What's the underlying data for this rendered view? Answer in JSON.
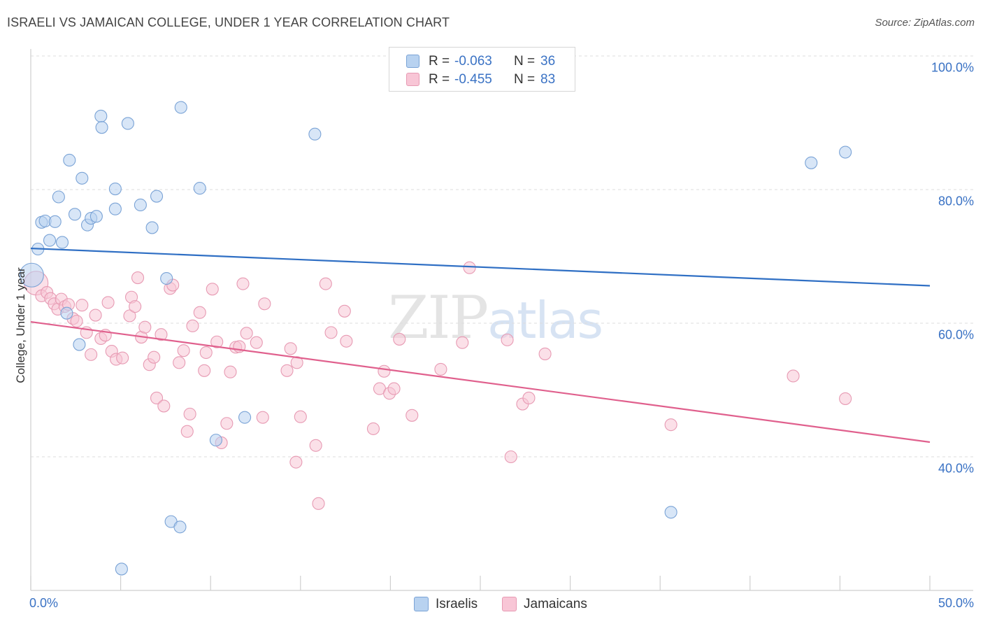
{
  "header": {
    "title": "ISRAELI VS JAMAICAN COLLEGE, UNDER 1 YEAR CORRELATION CHART",
    "source": "Source: ZipAtlas.com"
  },
  "watermark": {
    "zip": "ZIP",
    "atlas": "atlas"
  },
  "colors": {
    "israelis_fill": "#b8d2f0",
    "israelis_stroke": "#7aa3d6",
    "israelis_line": "#2f6fc4",
    "jamaicans_fill": "#f8c6d6",
    "jamaicans_stroke": "#e79ab3",
    "jamaicans_line": "#e0608d",
    "grid": "#dedede",
    "axis_text": "#3a72c4"
  },
  "legend_top": {
    "rows": [
      {
        "r_label": "R =",
        "r_value": "-0.063",
        "n_label": "N =",
        "n_value": "36"
      },
      {
        "r_label": "R =",
        "r_value": "-0.455",
        "n_label": "N =",
        "n_value": "83"
      }
    ]
  },
  "legend_bottom": {
    "israelis": "Israelis",
    "jamaicans": "Jamaicans"
  },
  "chart_data": {
    "type": "scatter",
    "title": "ISRAELI VS JAMAICAN COLLEGE, UNDER 1 YEAR CORRELATION CHART",
    "xlabel": "",
    "ylabel": "College, Under 1 year",
    "xlim": [
      0,
      50
    ],
    "ylim": [
      20,
      102
    ],
    "x_tick_labels": [
      "0.0%",
      "50.0%"
    ],
    "y_ticks": [
      {
        "value": 100,
        "label": "100.0%"
      },
      {
        "value": 80,
        "label": "80.0%"
      },
      {
        "value": 60,
        "label": "60.0%"
      },
      {
        "value": 40,
        "label": "40.0%"
      }
    ],
    "grid": true,
    "legend_position": "top-center",
    "series": [
      {
        "name": "Israelis",
        "R": -0.063,
        "N": 36,
        "trend": {
          "x": [
            0,
            50
          ],
          "y": [
            71.2,
            65.6
          ]
        },
        "points": [
          {
            "x": 0.05,
            "y": 67.2,
            "big": true
          },
          {
            "x": 0.4,
            "y": 71.1
          },
          {
            "x": 0.6,
            "y": 75.1
          },
          {
            "x": 0.8,
            "y": 75.3
          },
          {
            "x": 1.05,
            "y": 72.4
          },
          {
            "x": 1.35,
            "y": 75.2
          },
          {
            "x": 1.55,
            "y": 78.9
          },
          {
            "x": 1.75,
            "y": 72.1
          },
          {
            "x": 2.15,
            "y": 84.4
          },
          {
            "x": 2.45,
            "y": 76.3
          },
          {
            "x": 2.85,
            "y": 81.7
          },
          {
            "x": 3.15,
            "y": 74.7
          },
          {
            "x": 3.35,
            "y": 75.7
          },
          {
            "x": 3.65,
            "y": 76.0
          },
          {
            "x": 3.9,
            "y": 91.0
          },
          {
            "x": 3.95,
            "y": 89.3
          },
          {
            "x": 4.7,
            "y": 80.1
          },
          {
            "x": 4.7,
            "y": 77.1
          },
          {
            "x": 5.4,
            "y": 89.9
          },
          {
            "x": 6.1,
            "y": 77.7
          },
          {
            "x": 6.75,
            "y": 74.3
          },
          {
            "x": 7.0,
            "y": 79.0
          },
          {
            "x": 7.55,
            "y": 66.7
          },
          {
            "x": 7.8,
            "y": 30.3
          },
          {
            "x": 8.3,
            "y": 29.5
          },
          {
            "x": 8.35,
            "y": 92.3
          },
          {
            "x": 9.4,
            "y": 80.2
          },
          {
            "x": 10.3,
            "y": 42.5
          },
          {
            "x": 11.9,
            "y": 45.9
          },
          {
            "x": 15.8,
            "y": 88.3
          },
          {
            "x": 2.0,
            "y": 61.5
          },
          {
            "x": 2.7,
            "y": 56.8
          },
          {
            "x": 5.05,
            "y": 23.2
          },
          {
            "x": 35.6,
            "y": 31.7
          },
          {
            "x": 43.4,
            "y": 84.0
          },
          {
            "x": 45.3,
            "y": 85.6
          }
        ]
      },
      {
        "name": "Jamaicans",
        "R": -0.455,
        "N": 83,
        "trend": {
          "x": [
            0,
            50
          ],
          "y": [
            60.2,
            42.2
          ]
        },
        "points": [
          {
            "x": 0.3,
            "y": 66.0,
            "big": true
          },
          {
            "x": 0.6,
            "y": 64.1
          },
          {
            "x": 0.9,
            "y": 64.6
          },
          {
            "x": 1.1,
            "y": 63.7
          },
          {
            "x": 1.3,
            "y": 62.9
          },
          {
            "x": 1.5,
            "y": 62.1
          },
          {
            "x": 1.7,
            "y": 63.6
          },
          {
            "x": 1.9,
            "y": 62.5
          },
          {
            "x": 2.1,
            "y": 62.8
          },
          {
            "x": 2.35,
            "y": 60.7
          },
          {
            "x": 2.55,
            "y": 60.3
          },
          {
            "x": 2.85,
            "y": 62.7
          },
          {
            "x": 3.1,
            "y": 58.6
          },
          {
            "x": 3.35,
            "y": 55.3
          },
          {
            "x": 3.6,
            "y": 61.2
          },
          {
            "x": 3.9,
            "y": 57.7
          },
          {
            "x": 4.15,
            "y": 58.2
          },
          {
            "x": 4.3,
            "y": 63.1
          },
          {
            "x": 4.5,
            "y": 55.8
          },
          {
            "x": 4.75,
            "y": 54.6
          },
          {
            "x": 5.1,
            "y": 54.8
          },
          {
            "x": 5.5,
            "y": 61.1
          },
          {
            "x": 5.6,
            "y": 63.9
          },
          {
            "x": 5.8,
            "y": 62.5
          },
          {
            "x": 5.95,
            "y": 66.8
          },
          {
            "x": 6.15,
            "y": 57.9
          },
          {
            "x": 6.35,
            "y": 59.4
          },
          {
            "x": 6.6,
            "y": 53.8
          },
          {
            "x": 6.85,
            "y": 54.9
          },
          {
            "x": 7.0,
            "y": 48.8
          },
          {
            "x": 7.25,
            "y": 58.3
          },
          {
            "x": 7.4,
            "y": 47.6
          },
          {
            "x": 7.75,
            "y": 65.2
          },
          {
            "x": 7.9,
            "y": 65.7
          },
          {
            "x": 8.25,
            "y": 54.1
          },
          {
            "x": 8.5,
            "y": 55.9
          },
          {
            "x": 8.7,
            "y": 43.8
          },
          {
            "x": 8.85,
            "y": 46.4
          },
          {
            "x": 9.0,
            "y": 59.6
          },
          {
            "x": 9.4,
            "y": 61.6
          },
          {
            "x": 9.65,
            "y": 52.9
          },
          {
            "x": 9.75,
            "y": 55.6
          },
          {
            "x": 10.1,
            "y": 65.1
          },
          {
            "x": 10.35,
            "y": 57.2
          },
          {
            "x": 10.6,
            "y": 42.1
          },
          {
            "x": 10.9,
            "y": 45.0
          },
          {
            "x": 11.1,
            "y": 52.7
          },
          {
            "x": 11.4,
            "y": 56.4
          },
          {
            "x": 11.6,
            "y": 56.5
          },
          {
            "x": 11.8,
            "y": 65.9
          },
          {
            "x": 12.0,
            "y": 58.5
          },
          {
            "x": 12.55,
            "y": 57.1
          },
          {
            "x": 12.9,
            "y": 45.9
          },
          {
            "x": 13.0,
            "y": 62.9
          },
          {
            "x": 14.25,
            "y": 52.9
          },
          {
            "x": 14.45,
            "y": 56.2
          },
          {
            "x": 14.75,
            "y": 39.2
          },
          {
            "x": 14.8,
            "y": 54.1
          },
          {
            "x": 15.85,
            "y": 41.7
          },
          {
            "x": 16.0,
            "y": 33.0
          },
          {
            "x": 16.4,
            "y": 65.9
          },
          {
            "x": 16.7,
            "y": 58.6
          },
          {
            "x": 17.45,
            "y": 61.8
          },
          {
            "x": 17.55,
            "y": 57.3
          },
          {
            "x": 19.05,
            "y": 44.2
          },
          {
            "x": 19.4,
            "y": 50.2
          },
          {
            "x": 19.65,
            "y": 52.8
          },
          {
            "x": 19.95,
            "y": 49.5
          },
          {
            "x": 20.2,
            "y": 50.2
          },
          {
            "x": 20.5,
            "y": 57.6
          },
          {
            "x": 21.2,
            "y": 46.2
          },
          {
            "x": 22.8,
            "y": 53.1
          },
          {
            "x": 24.0,
            "y": 57.1
          },
          {
            "x": 24.4,
            "y": 68.3
          },
          {
            "x": 26.7,
            "y": 40.0
          },
          {
            "x": 27.35,
            "y": 47.9
          },
          {
            "x": 26.5,
            "y": 57.5
          },
          {
            "x": 27.7,
            "y": 48.8
          },
          {
            "x": 28.6,
            "y": 55.4
          },
          {
            "x": 35.6,
            "y": 44.8
          },
          {
            "x": 42.4,
            "y": 52.1
          },
          {
            "x": 45.3,
            "y": 48.7
          },
          {
            "x": 15.0,
            "y": 46.0
          }
        ]
      }
    ]
  }
}
